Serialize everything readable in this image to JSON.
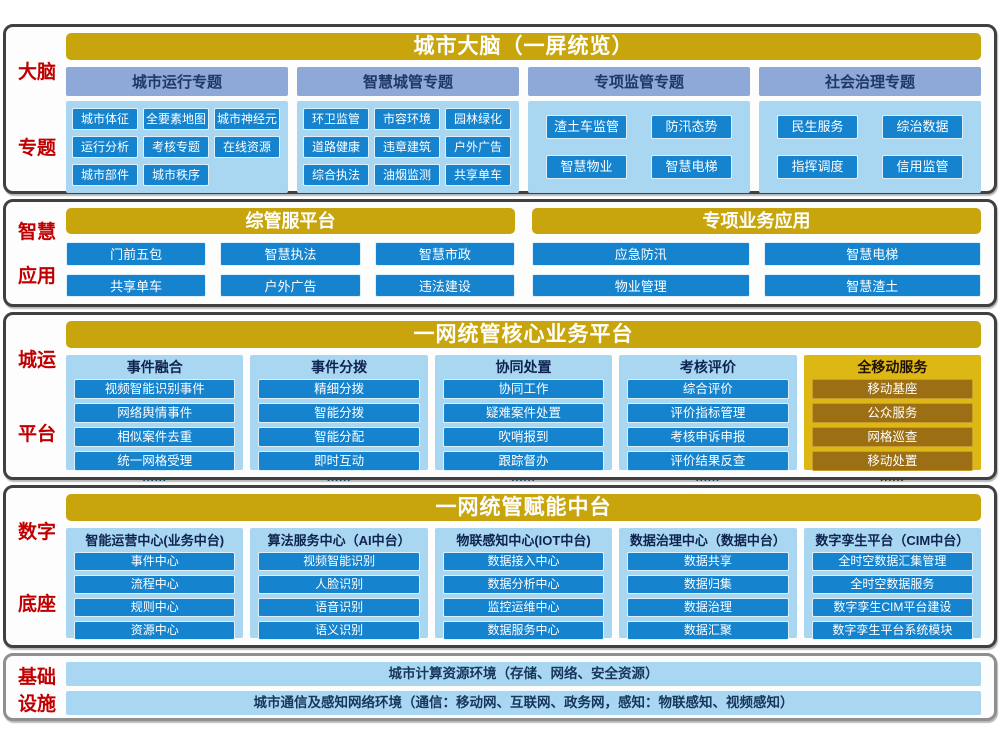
{
  "colors": {
    "gold": "#c8a50c",
    "gold_panel": "#ddb814",
    "gold_button": "#9d6f14",
    "blue_button": "#1583cd",
    "light_blue_panel": "#a9d7f1",
    "slate_header": "#8ea9d8",
    "navy_text": "#1f3864",
    "red_label": "#c00000"
  },
  "bands": [
    {
      "label_lines": [
        "大脑",
        "专题"
      ],
      "title": "城市大脑（一屏统览）",
      "columns": [
        {
          "header": "城市运行专题",
          "items": [
            "城市体征",
            "全要素地图",
            "城市神经元",
            "运行分析",
            "考核专题",
            "在线资源",
            "城市部件",
            "城市秩序"
          ]
        },
        {
          "header": "智慧城管专题",
          "items": [
            "环卫监管",
            "市容环境",
            "园林绿化",
            "道路健康",
            "违章建筑",
            "户外广告",
            "综合执法",
            "油烟监测",
            "共享单车"
          ]
        },
        {
          "header": "专项监管专题",
          "items": [
            "渣土车监管",
            "防汛态势",
            "智慧物业",
            "智慧电梯"
          ]
        },
        {
          "header": "社会治理专题",
          "items": [
            "民生服务",
            "综治数据",
            "指挥调度",
            "信用监管"
          ]
        }
      ]
    },
    {
      "label_lines": [
        "智慧",
        "应用"
      ],
      "groups": [
        {
          "title": "综管服平台",
          "items": [
            "门前五包",
            "智慧执法",
            "智慧市政",
            "共享单车",
            "户外广告",
            "违法建设"
          ]
        },
        {
          "title": "专项业务应用",
          "items": [
            "应急防汛",
            "智慧电梯",
            "物业管理",
            "智慧渣土"
          ]
        }
      ]
    },
    {
      "label_lines": [
        "城运",
        "平台"
      ],
      "title": "一网统管核心业务平台",
      "columns": [
        {
          "header": "事件融合",
          "dots": "......",
          "items": [
            "视频智能识别事件",
            "网络舆情事件",
            "相似案件去重",
            "统一网格受理"
          ]
        },
        {
          "header": "事件分拨",
          "dots": "......",
          "items": [
            "精细分拨",
            "智能分拨",
            "智能分配",
            "即时互动"
          ]
        },
        {
          "header": "协同处置",
          "dots": "......",
          "items": [
            "协同工作",
            "疑难案件处置",
            "吹哨报到",
            "跟踪督办"
          ]
        },
        {
          "header": "考核评价",
          "dots": "......",
          "items": [
            "综合评价",
            "评价指标管理",
            "考核申诉申报",
            "评价结果反查"
          ]
        },
        {
          "header": "全移动服务",
          "dots": "......",
          "items": [
            "移动基座",
            "公众服务",
            "网格巡查",
            "移动处置"
          ]
        }
      ]
    },
    {
      "label_lines": [
        "数字",
        "底座"
      ],
      "title": "一网统管赋能中台",
      "columns": [
        {
          "header": "智能运营中心(业务中台)",
          "items": [
            "事件中心",
            "流程中心",
            "规则中心",
            "资源中心"
          ]
        },
        {
          "header": "算法服务中心（AI中台）",
          "items": [
            "视频智能识别",
            "人脸识别",
            "语音识别",
            "语义识别"
          ]
        },
        {
          "header": "物联感知中心(IOT中台)",
          "items": [
            "数据接入中心",
            "数据分析中心",
            "监控运维中心",
            "数据服务中心"
          ]
        },
        {
          "header": "数据治理中心（数据中台）",
          "items": [
            "数据共享",
            "数据归集",
            "数据治理",
            "数据汇聚"
          ]
        },
        {
          "header": "数字孪生平台（CIM中台）",
          "items": [
            "全时空数据汇集管理",
            "全时空数据服务",
            "数字孪生CIM平台建设",
            "数字孪生平台系统模块"
          ]
        }
      ]
    },
    {
      "label_lines": [
        "基础",
        "设施"
      ],
      "rows": [
        "城市计算资源环境（存储、网络、安全资源）",
        "城市通信及感知网络环境（通信：移动网、互联网、政务网，感知：物联感知、视频感知）"
      ]
    }
  ]
}
